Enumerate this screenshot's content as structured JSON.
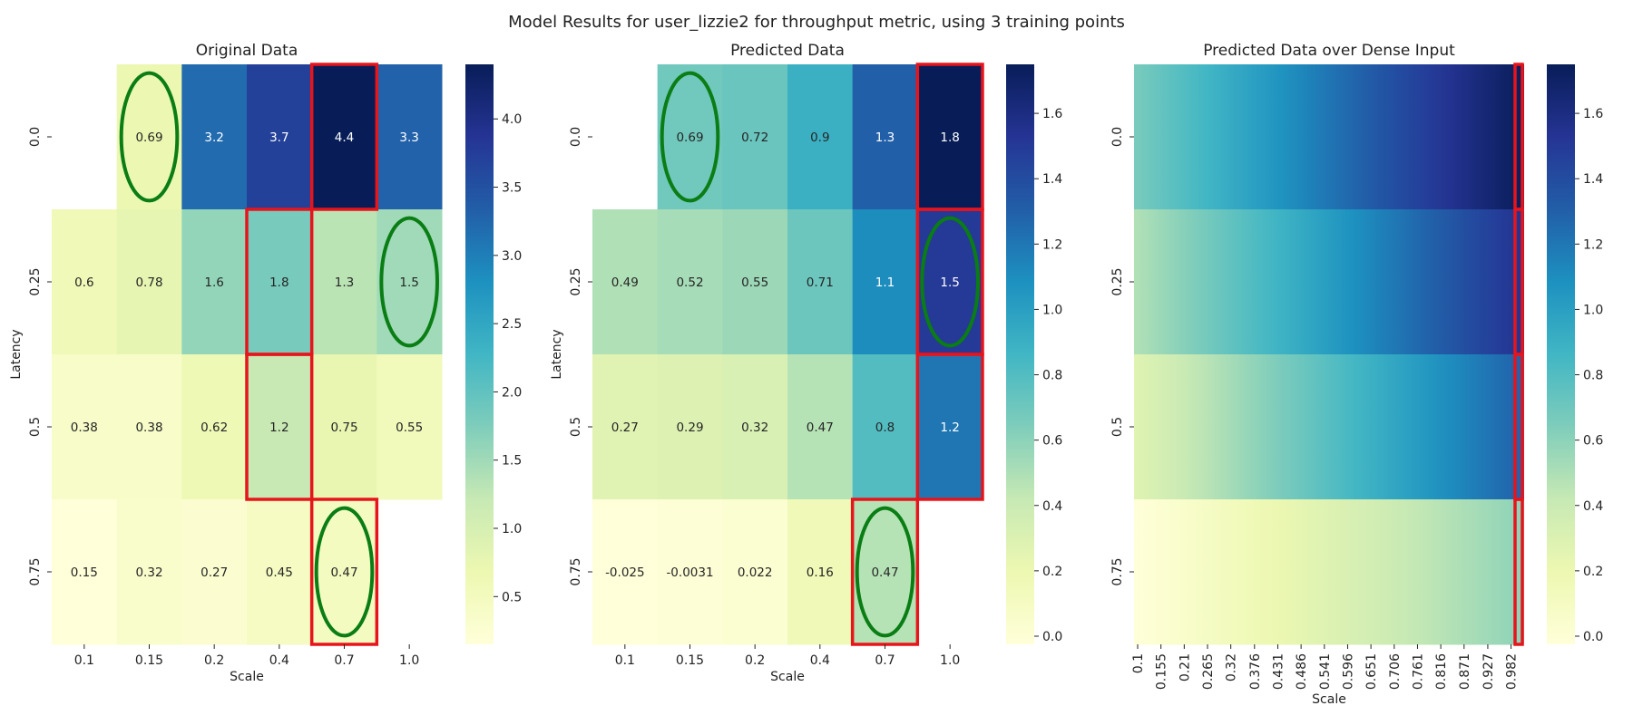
{
  "suptitle": "Model Results for user_lizzie2 for throughput metric, using 3 training points",
  "colors": {
    "ylgnbu": [
      "#ffffd9",
      "#edf8b1",
      "#c7e9b4",
      "#7fcdbb",
      "#41b6c4",
      "#1d91c0",
      "#225ea8",
      "#253494",
      "#081d58"
    ],
    "box": "#e8141c",
    "ellipse": "#0a7d14"
  },
  "chart_data": [
    {
      "type": "heatmap",
      "title": "Original Data",
      "xlabel": "Scale",
      "ylabel": "Latency",
      "x_ticks": [
        "0.1",
        "0.15",
        "0.2",
        "0.4",
        "0.7",
        "1.0"
      ],
      "y_ticks": [
        "0.0",
        "0.25",
        "0.5",
        "0.75"
      ],
      "values": [
        [
          null,
          0.69,
          3.2,
          3.7,
          4.4,
          3.3
        ],
        [
          0.6,
          0.78,
          1.6,
          1.8,
          1.3,
          1.5
        ],
        [
          0.38,
          0.38,
          0.62,
          1.2,
          0.75,
          0.55
        ],
        [
          0.15,
          0.32,
          0.27,
          0.45,
          0.47,
          null
        ]
      ],
      "labels": [
        [
          "",
          "0.69",
          "3.2",
          "3.7",
          "4.4",
          "3.3"
        ],
        [
          "0.6",
          "0.78",
          "1.6",
          "1.8",
          "1.3",
          "1.5"
        ],
        [
          "0.38",
          "0.38",
          "0.62",
          "1.2",
          "0.75",
          "0.55"
        ],
        [
          "0.15",
          "0.32",
          "0.27",
          "0.45",
          "0.47",
          ""
        ]
      ],
      "vmin": 0.15,
      "vmax": 4.4,
      "colorbar_ticks": [
        "0.5",
        "1.0",
        "1.5",
        "2.0",
        "2.5",
        "3.0",
        "3.5",
        "4.0"
      ],
      "highlight_boxes": [
        [
          0,
          4
        ],
        [
          1,
          3
        ],
        [
          2,
          3
        ],
        [
          3,
          4
        ]
      ],
      "circled_cells": [
        [
          0,
          1
        ],
        [
          1,
          5
        ],
        [
          3,
          4
        ]
      ]
    },
    {
      "type": "heatmap",
      "title": "Predicted Data",
      "xlabel": "Scale",
      "ylabel": "Latency",
      "x_ticks": [
        "0.1",
        "0.15",
        "0.2",
        "0.4",
        "0.7",
        "1.0"
      ],
      "y_ticks": [
        "0.0",
        "0.25",
        "0.5",
        "0.75"
      ],
      "values": [
        [
          null,
          0.69,
          0.72,
          0.9,
          1.3,
          1.8
        ],
        [
          0.49,
          0.52,
          0.55,
          0.71,
          1.1,
          1.5
        ],
        [
          0.27,
          0.29,
          0.32,
          0.47,
          0.8,
          1.2
        ],
        [
          -0.025,
          -0.0031,
          0.022,
          0.16,
          0.47,
          null
        ]
      ],
      "labels": [
        [
          "",
          "0.69",
          "0.72",
          "0.9",
          "1.3",
          "1.8"
        ],
        [
          "0.49",
          "0.52",
          "0.55",
          "0.71",
          "1.1",
          "1.5"
        ],
        [
          "0.27",
          "0.29",
          "0.32",
          "0.47",
          "0.8",
          "1.2"
        ],
        [
          "-0.025",
          "-0.0031",
          "0.022",
          "0.16",
          "0.47",
          ""
        ]
      ],
      "vmin": -0.025,
      "vmax": 1.75,
      "colorbar_ticks": [
        "0.0",
        "0.2",
        "0.4",
        "0.6",
        "0.8",
        "1.0",
        "1.2",
        "1.4",
        "1.6"
      ],
      "highlight_boxes": [
        [
          0,
          5
        ],
        [
          1,
          5
        ],
        [
          2,
          5
        ],
        [
          3,
          4
        ]
      ],
      "circled_cells": [
        [
          0,
          1
        ],
        [
          1,
          5
        ],
        [
          3,
          4
        ]
      ]
    },
    {
      "type": "heatmap",
      "title": "Predicted Data over Dense Input",
      "xlabel": "Scale",
      "ylabel": "",
      "x_ticks": [
        "0.1",
        "0.155",
        "0.21",
        "0.265",
        "0.32",
        "0.376",
        "0.431",
        "0.486",
        "0.541",
        "0.596",
        "0.651",
        "0.706",
        "0.761",
        "0.816",
        "0.871",
        "0.927",
        "0.982"
      ],
      "y_ticks": [
        "0.0",
        "0.25",
        "0.5",
        "0.75"
      ],
      "dense_x_range": [
        0.1,
        1.0
      ],
      "dense_rows": [
        {
          "left": 0.66,
          "right": 1.75
        },
        {
          "left": 0.48,
          "right": 1.55
        },
        {
          "left": 0.27,
          "right": 1.3
        },
        {
          "left": -0.025,
          "right": 0.6
        }
      ],
      "vmin": -0.025,
      "vmax": 1.75,
      "colorbar_ticks": [
        "0.0",
        "0.2",
        "0.4",
        "0.6",
        "0.8",
        "1.0",
        "1.2",
        "1.4",
        "1.6"
      ],
      "highlight_boxes": [
        [
          0,
          "last"
        ],
        [
          1,
          "last"
        ],
        [
          2,
          "last"
        ],
        [
          3,
          "last"
        ]
      ]
    }
  ]
}
